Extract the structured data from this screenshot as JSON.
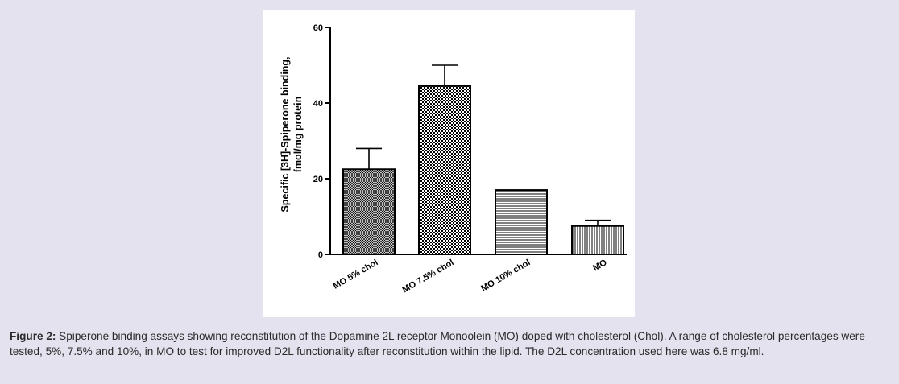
{
  "chart_data": {
    "type": "bar",
    "categories": [
      "MO 5% chol",
      "MO 7.5% chol",
      "MO 10% chol",
      "MO"
    ],
    "values": [
      22.5,
      44.5,
      17,
      7.5
    ],
    "errors": [
      5.5,
      5.5,
      0,
      1.5
    ],
    "patterns": [
      "fine-crosshatch",
      "checker",
      "horizontal-lines",
      "vertical-lines"
    ],
    "ylabel_line1": "Specific [3H]-Spiperone binding,",
    "ylabel_line2": "fmol/mg protein",
    "yticks": [
      0,
      20,
      40,
      60
    ],
    "ylim": [
      0,
      60
    ],
    "grid": false,
    "colors": {
      "bar_stroke": "#000000",
      "background": "#ffffff"
    }
  },
  "caption": {
    "label": "Figure 2:",
    "text": " Spiperone binding assays showing reconstitution of the Dopamine 2L receptor Monoolein (MO) doped with cholesterol (Chol). A range of cholesterol percentages were tested, 5%, 7.5% and 10%, in MO to test for improved D2L functionality after reconstitution within the lipid. The D2L concentration used here was 6.8 mg/ml."
  }
}
